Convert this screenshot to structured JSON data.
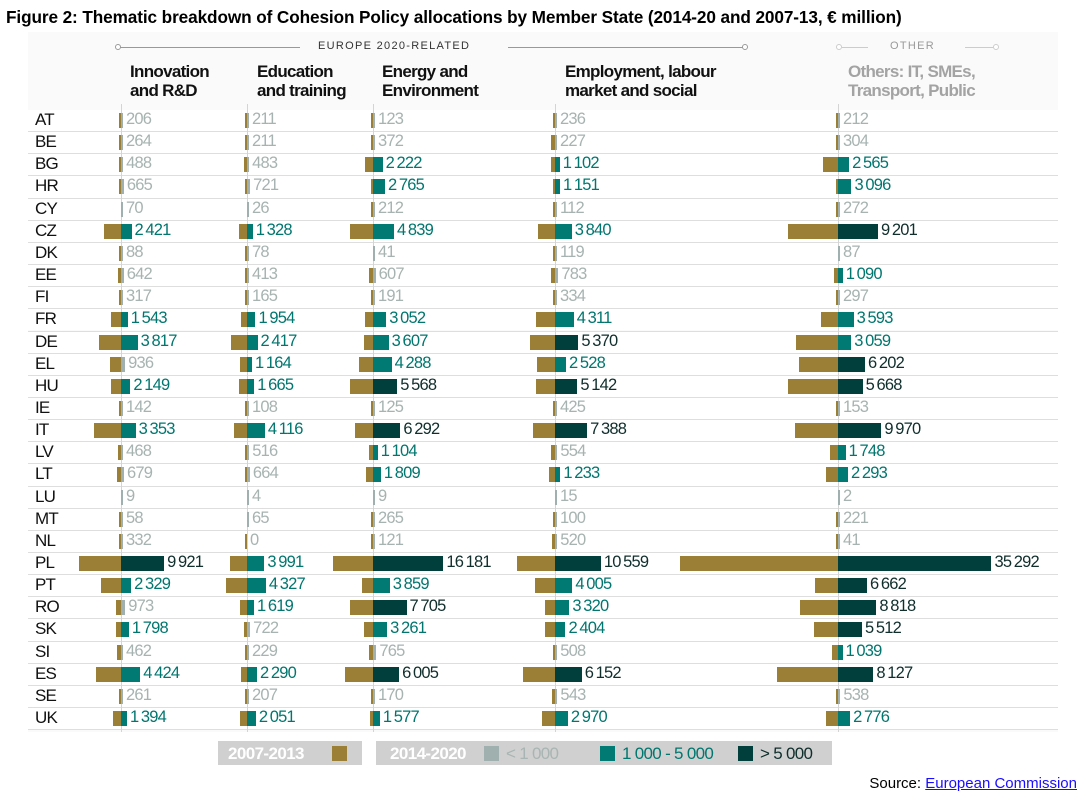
{
  "title": "Figure 2: Thematic breakdown of Cohesion Policy allocations by Member State (2014-20 and 2007-13, € million)",
  "source": {
    "label": "Source:",
    "link_text": "European Commission"
  },
  "colors": {
    "p2007_2013": "#9b7f37",
    "lt1000": "#9fb0ae",
    "1000to5000": "#007a73",
    "gt5000": "#003f3c"
  },
  "chart_data": {
    "type": "bar",
    "orientation": "horizontal, diverging (2007-13 left, 2014-20 right of each column axis)",
    "unit": "€ million",
    "groups": [
      {
        "label": "EUROPE 2020-RELATED",
        "columns": [
          0,
          1,
          2,
          3
        ]
      },
      {
        "label": "OTHER",
        "columns": [
          4
        ]
      }
    ],
    "categories": [
      "AT",
      "BE",
      "BG",
      "HR",
      "CY",
      "CZ",
      "DK",
      "EE",
      "FI",
      "FR",
      "DE",
      "EL",
      "HU",
      "IE",
      "IT",
      "LV",
      "LT",
      "LU",
      "MT",
      "NL",
      "PL",
      "PT",
      "RO",
      "SK",
      "SI",
      "ES",
      "SE",
      "UK"
    ],
    "columns": [
      {
        "name": "Innovation\nand R&D",
        "values_2014_2020": [
          206,
          264,
          488,
          665,
          70,
          2421,
          88,
          642,
          317,
          1543,
          3817,
          936,
          2149,
          142,
          3353,
          468,
          679,
          9,
          58,
          332,
          9921,
          2329,
          973,
          1798,
          462,
          4424,
          261,
          1394
        ],
        "values_2007_2013": [
          300,
          300,
          450,
          300,
          0,
          4000,
          150,
          600,
          400,
          2250,
          5000,
          2450,
          2200,
          150,
          6150,
          700,
          1000,
          0,
          50,
          300,
          9600,
          4650,
          1100,
          1250,
          1000,
          5700,
          200,
          1950
        ]
      },
      {
        "name": "Education\nand training",
        "values_2014_2020": [
          211,
          211,
          483,
          721,
          26,
          1328,
          78,
          413,
          165,
          1954,
          2417,
          1164,
          1665,
          108,
          4116,
          516,
          664,
          4,
          65,
          0,
          3991,
          4327,
          1619,
          722,
          229,
          2290,
          207,
          2051
        ],
        "values_2007_2013": [
          250,
          250,
          600,
          200,
          0,
          1950,
          150,
          150,
          150,
          1400,
          3650,
          1700,
          1800,
          150,
          2900,
          150,
          450,
          0,
          0,
          450,
          3900,
          4800,
          1650,
          600,
          200,
          1350,
          150,
          1650
        ]
      },
      {
        "name": "Energy and\nEnvironment",
        "values_2014_2020": [
          123,
          372,
          2222,
          2765,
          212,
          4839,
          41,
          607,
          191,
          3052,
          3607,
          4288,
          5568,
          125,
          6292,
          1104,
          1809,
          9,
          265,
          121,
          16181,
          3859,
          7705,
          3261,
          765,
          6005,
          170,
          1577
        ],
        "values_2007_2013": [
          50,
          150,
          1800,
          350,
          150,
          5400,
          0,
          900,
          150,
          1900,
          2050,
          3200,
          5250,
          50,
          4250,
          950,
          1550,
          0,
          200,
          100,
          9100,
          2550,
          5350,
          2050,
          1000,
          6500,
          50,
          800
        ]
      },
      {
        "name": "Employment, labour\nmarket and social",
        "values_2014_2020": [
          236,
          227,
          1102,
          1151,
          112,
          3840,
          119,
          783,
          334,
          4311,
          5370,
          2528,
          5142,
          425,
          7388,
          554,
          1233,
          15,
          100,
          520,
          10559,
          4005,
          3320,
          2404,
          508,
          6152,
          543,
          2970
        ],
        "values_2007_2013": [
          550,
          900,
          950,
          150,
          50,
          3850,
          50,
          950,
          550,
          4400,
          5700,
          4150,
          4450,
          450,
          5100,
          950,
          1300,
          0,
          100,
          700,
          8850,
          4500,
          2400,
          2350,
          550,
          7300,
          700,
          3000
        ]
      },
      {
        "name": "Others: IT, SMEs,\nTransport, Public",
        "values_2014_2020": [
          212,
          304,
          2565,
          3096,
          272,
          9201,
          87,
          1090,
          297,
          3593,
          3059,
          6202,
          5668,
          153,
          9970,
          1748,
          2293,
          2,
          221,
          41,
          35292,
          6662,
          8818,
          5512,
          1039,
          8127,
          538,
          2776
        ],
        "values_2007_2013": [
          150,
          500,
          3400,
          300,
          100,
          11450,
          0,
          1000,
          150,
          3800,
          9550,
          8950,
          11450,
          100,
          9850,
          1850,
          2700,
          0,
          100,
          100,
          36400,
          5300,
          8800,
          5450,
          1450,
          13950,
          300,
          2800
        ]
      }
    ],
    "legend": {
      "period_2007": "2007-2013",
      "period_2014": "2014-2020",
      "bins": [
        "< 1 000",
        "1 000 - 5 000",
        "> 5 000"
      ]
    },
    "legend_placement": "bottom"
  }
}
